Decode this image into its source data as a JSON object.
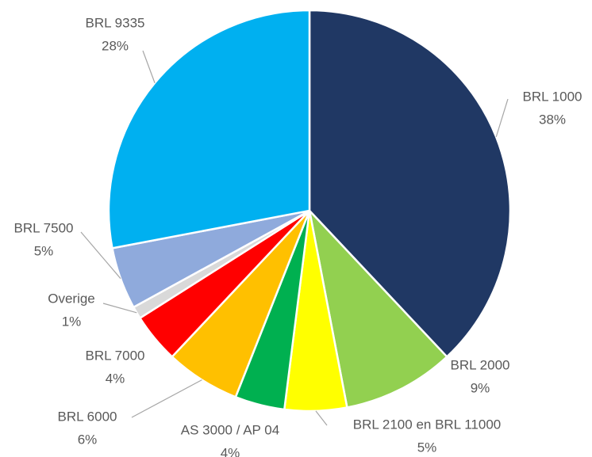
{
  "chart_data": {
    "type": "pie",
    "categories": [
      "BRL 1000",
      "BRL 2000",
      "BRL 2100 en BRL 11000",
      "AS 3000 / AP 04",
      "BRL 6000",
      "BRL 7000",
      "Overige",
      "BRL 7500",
      "BRL 9335"
    ],
    "values": [
      38,
      9,
      5,
      4,
      6,
      4,
      1,
      5,
      28
    ],
    "value_labels": [
      "38%",
      "9%",
      "5%",
      "4%",
      "6%",
      "4%",
      "1%",
      "5%",
      "28%"
    ],
    "colors": [
      "#203864",
      "#92d050",
      "#ffff00",
      "#00b050",
      "#ffc000",
      "#ff0000",
      "#d9d9d9",
      "#8faadc",
      "#00b0f0"
    ]
  }
}
